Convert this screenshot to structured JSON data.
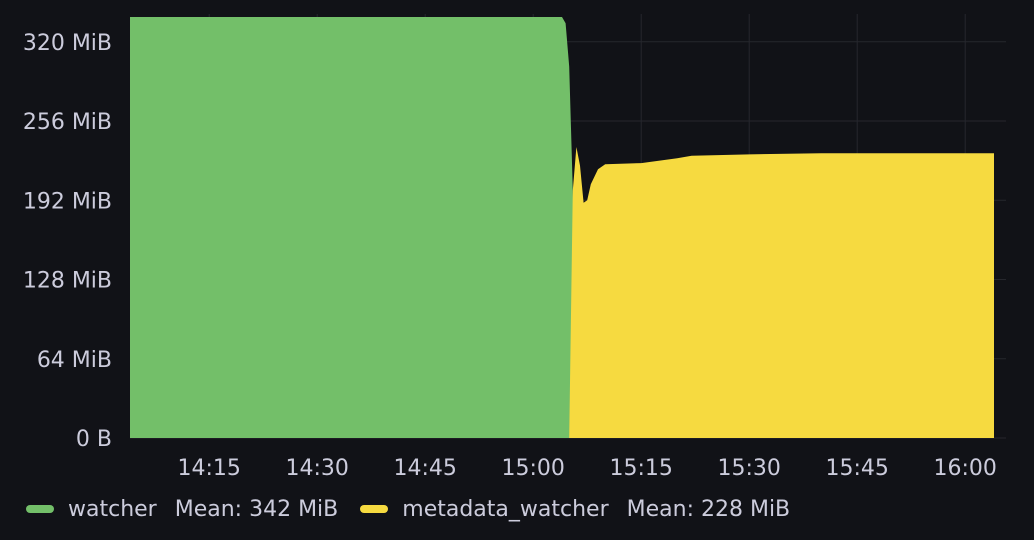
{
  "chart_data": {
    "type": "area",
    "title": "",
    "xlabel": "",
    "ylabel": "",
    "y_unit": "MiB",
    "ylim": [
      0,
      340
    ],
    "y_ticks": [
      {
        "value": 0,
        "label": "0 B"
      },
      {
        "value": 64,
        "label": "64 MiB"
      },
      {
        "value": 128,
        "label": "128 MiB"
      },
      {
        "value": 192,
        "label": "192 MiB"
      },
      {
        "value": 256,
        "label": "256 MiB"
      },
      {
        "value": 320,
        "label": "320 MiB"
      }
    ],
    "xlim": [
      "14:04",
      "16:04"
    ],
    "x_ticks": [
      "14:15",
      "14:30",
      "14:45",
      "15:00",
      "15:15",
      "15:30",
      "15:45",
      "16:00"
    ],
    "grid": true,
    "legend_position": "bottom-left",
    "series": [
      {
        "name": "watcher",
        "color": "#73bf69",
        "mean_label": "Mean: 342 MiB",
        "points": [
          [
            "14:04",
            340
          ],
          [
            "15:04",
            340
          ],
          [
            "15:04.5",
            335
          ],
          [
            "15:05",
            300
          ],
          [
            "15:05.5",
            200
          ],
          [
            "15:06",
            80
          ],
          [
            "15:06.5",
            10
          ],
          [
            "15:07",
            0
          ]
        ]
      },
      {
        "name": "metadata_watcher",
        "color": "#f6da40",
        "mean_label": "Mean: 228 MiB",
        "points": [
          [
            "15:05",
            0
          ],
          [
            "15:05.5",
            200
          ],
          [
            "15:06",
            235
          ],
          [
            "15:06.5",
            220
          ],
          [
            "15:07",
            190
          ],
          [
            "15:07.5",
            192
          ],
          [
            "15:08",
            205
          ],
          [
            "15:09",
            217
          ],
          [
            "15:10",
            221
          ],
          [
            "15:15",
            222
          ],
          [
            "15:20",
            226
          ],
          [
            "15:22",
            228
          ],
          [
            "15:30",
            229
          ],
          [
            "15:40",
            230
          ],
          [
            "16:04",
            230
          ]
        ]
      }
    ]
  }
}
